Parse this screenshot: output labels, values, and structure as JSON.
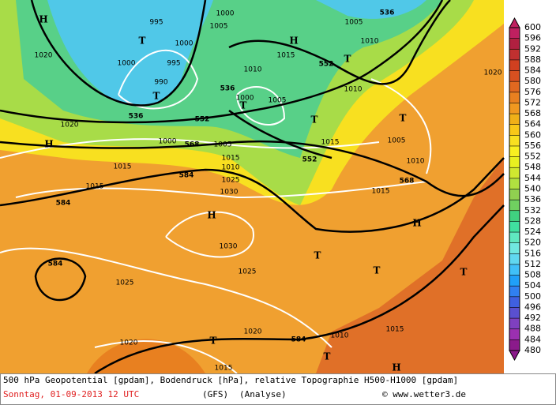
{
  "map": {
    "labels": [
      "995",
      "1000",
      "1005",
      "1005",
      "536",
      "1010",
      "1000",
      "995",
      "1000",
      "1020",
      "1015",
      "552",
      "1010",
      "990",
      "536",
      "1000",
      "1005",
      "1010",
      "536",
      "552",
      "1020",
      "1000",
      "568",
      "1005",
      "1015",
      "1010",
      "1005",
      "1010",
      "1015",
      "552",
      "1015",
      "584",
      "1025",
      "1015",
      "1030",
      "1015",
      "568",
      "584",
      "1030",
      "1025",
      "584",
      "1025",
      "1020",
      "584",
      "1010",
      "1015",
      "1020",
      "1015",
      "1020"
    ],
    "centers": [
      "H",
      "T",
      "T",
      "H",
      "T",
      "T",
      "T",
      "H",
      "H",
      "T",
      "T",
      "T",
      "T",
      "T",
      "H",
      "T",
      "H"
    ]
  },
  "colorbar": {
    "ticks": [
      600,
      596,
      592,
      588,
      584,
      580,
      576,
      572,
      568,
      564,
      560,
      556,
      552,
      548,
      544,
      540,
      536,
      532,
      528,
      524,
      520,
      516,
      512,
      508,
      504,
      500,
      496,
      492,
      488,
      484,
      480
    ],
    "colors": [
      "#c02060",
      "#b02040",
      "#c03030",
      "#d04020",
      "#d85020",
      "#e06820",
      "#e88020",
      "#f09820",
      "#f0b018",
      "#f8c818",
      "#f8e020",
      "#f8f020",
      "#e8f020",
      "#d0e830",
      "#b0e040",
      "#90d050",
      "#70d060",
      "#40d080",
      "#40e0a0",
      "#60e8c0",
      "#70e8e0",
      "#60d8f0",
      "#40c0f8",
      "#20a0f8",
      "#3080f0",
      "#3f60e0",
      "#5a50d0",
      "#7f40c0",
      "#9b30b0",
      "#8b1a8b"
    ]
  },
  "caption": {
    "line1": "500 hPa Geopotential [gpdam], Bodendruck [hPa], relative Topographie H500-H1000 [gpdam]",
    "date": "Sonntag, 01-09-2013  12 UTC",
    "model": "(GFS)",
    "run": "(Analyse)",
    "credit": "© www.wetter3.de"
  }
}
